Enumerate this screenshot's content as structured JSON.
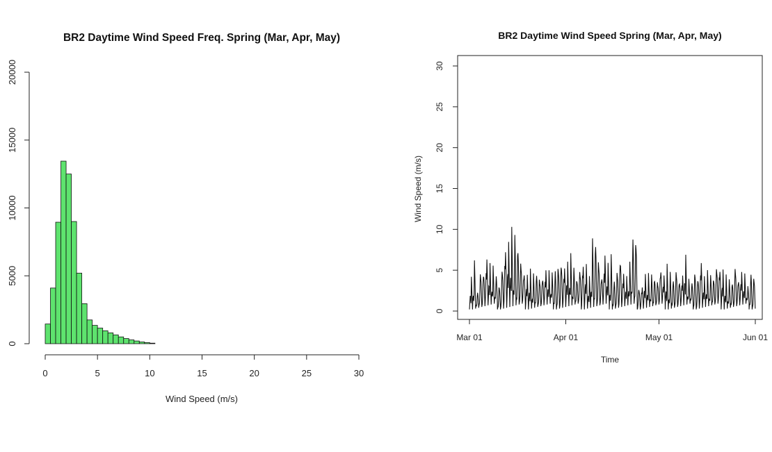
{
  "chart_data": [
    {
      "type": "bar",
      "title": "BR2 Daytime Wind Speed Freq. Spring (Mar, Apr, May)",
      "xlabel": "Wind Speed (m/s)",
      "ylabel": "",
      "xlim": [
        0,
        30
      ],
      "ylim": [
        0,
        20000
      ],
      "xticks": [
        "0",
        "5",
        "10",
        "15",
        "20",
        "25",
        "30"
      ],
      "yticks": [
        "0",
        "5000",
        "10000",
        "15000",
        "20000"
      ],
      "bin_width": 0.5,
      "bin_start": 0,
      "values": [
        1450,
        4100,
        8950,
        13450,
        12500,
        9000,
        5200,
        2950,
        1750,
        1350,
        1150,
        950,
        800,
        650,
        500,
        380,
        280,
        200,
        130,
        80,
        40
      ],
      "bar_color": "#5ee36e",
      "grid": false
    },
    {
      "type": "line",
      "title": "BR2 Daytime Wind Speed Spring (Mar, Apr, May)",
      "xlabel": "Time",
      "ylabel": "Wind Speed (m/s)",
      "x_unit": "day of spring season (Mar 01 = 0)",
      "xticks": [
        "Mar 01",
        "Apr 01",
        "May 01",
        "Jun 01"
      ],
      "yticks": [
        "0",
        "5",
        "10",
        "15",
        "20",
        "25",
        "30"
      ],
      "ylim": [
        0,
        30
      ],
      "daily_peak_wind_speed": [
        4.2,
        6.5,
        2.6,
        5.0,
        4.9,
        6.8,
        5.9,
        5.7,
        4.8,
        3.4,
        5.4,
        8.0,
        8.6,
        10.4,
        10.2,
        8.6,
        6.3,
        5.0,
        4.6,
        5.2,
        4.9,
        5.1,
        4.2,
        4.3,
        5.3,
        5.0,
        4.9,
        5.6,
        5.9,
        6.1,
        5.7,
        6.1,
        7.2,
        5.9,
        4.3,
        5.2,
        6.1,
        5.9,
        4.3,
        9.6,
        9.4,
        6.5,
        4.5,
        7.1,
        5.9,
        7.3,
        4.2,
        5.2,
        6.6,
        4.9,
        4.3,
        6.2,
        9.9,
        9.4,
        2.9,
        3.2,
        4.6,
        4.7,
        4.9,
        4.4,
        3.8,
        5.4,
        4.5,
        5.8,
        5.1,
        4.3,
        5.2,
        3.9,
        4.6,
        6.9,
        4.1,
        3.9,
        5.1,
        4.2,
        6.4,
        4.3,
        5.1,
        4.9,
        4.4,
        5.6,
        5.4,
        5.2,
        4.5,
        4.2,
        3.9,
        5.6,
        4.1,
        5.0,
        4.6,
        3.2,
        5.2,
        4.4
      ],
      "grid": false
    }
  ]
}
